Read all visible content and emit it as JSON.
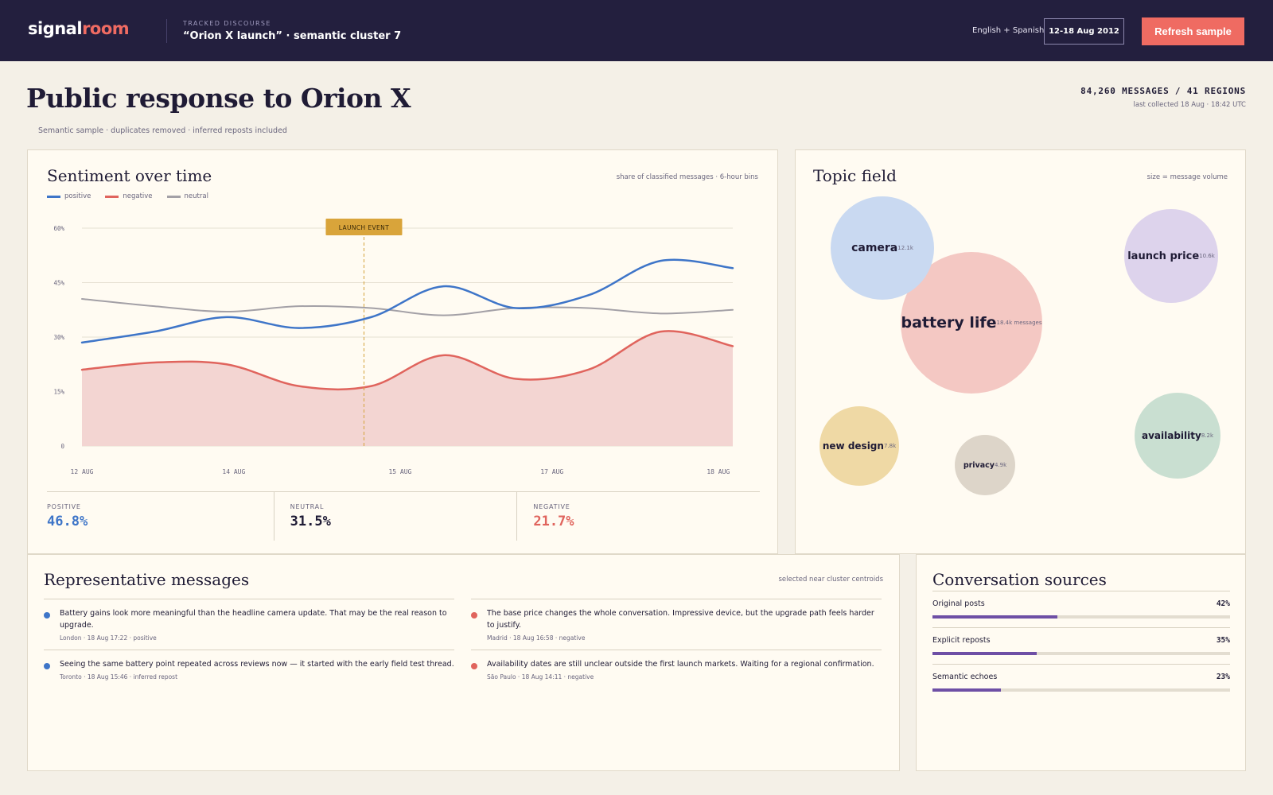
{
  "header": {
    "logo_part1": "signal",
    "logo_part2": "room",
    "tracked_label": "TRACKED DISCOURSE",
    "tracked_title": "“Orion X launch” · semantic cluster 7",
    "language": "English + Spanish",
    "date_range": "12-18 Aug 2012",
    "refresh_label": "Refresh sample"
  },
  "page": {
    "title": "Public response to Orion X",
    "subtitle": "Semantic sample · duplicates removed · inferred reposts included",
    "counts": "84,260 MESSAGES / 41 REGIONS",
    "collected": "last collected 18 Aug · 18:42 UTC"
  },
  "sentiment": {
    "title": "Sentiment over time",
    "note": "share of classified messages · 6-hour bins",
    "legend": [
      {
        "label": "positive",
        "color": "#3e75c8"
      },
      {
        "label": "negative",
        "color": "#e0645d"
      },
      {
        "label": "neutral",
        "color": "#a3a0a6"
      }
    ],
    "stats": [
      {
        "label": "POSITIVE",
        "value": "46.8%",
        "color": "#3e75c8"
      },
      {
        "label": "NEUTRAL",
        "value": "31.5%",
        "color": "#1f1b35"
      },
      {
        "label": "NEGATIVE",
        "value": "21.7%",
        "color": "#e0645d"
      }
    ]
  },
  "chart_data": {
    "type": "line",
    "title": "Sentiment over time",
    "subtitle": "share of classified messages · 6-hour bins",
    "x": [
      0,
      1,
      2,
      3,
      4,
      5,
      6,
      7,
      8,
      9
    ],
    "x_tick_labels": [
      {
        "at": 0,
        "label": "12 AUG"
      },
      {
        "at": 2.1,
        "label": "14 AUG"
      },
      {
        "at": 4.4,
        "label": "15 AUG"
      },
      {
        "at": 6.5,
        "label": "17 AUG"
      },
      {
        "at": 8.8,
        "label": "18 AUG"
      }
    ],
    "y_ticks": [
      0,
      15,
      30,
      45,
      60
    ],
    "y_tick_labels": [
      "0",
      "15%",
      "30%",
      "45%",
      "60%"
    ],
    "ylim": [
      0,
      60
    ],
    "grid": true,
    "legend_position": "top-left",
    "annotation": {
      "label": "LAUNCH EVENT",
      "x": 3.9
    },
    "series": [
      {
        "name": "positive",
        "color": "#3e75c8",
        "values": [
          28.5,
          31.5,
          35.5,
          32.5,
          35.5,
          44,
          38,
          41.5,
          51,
          49
        ]
      },
      {
        "name": "negative",
        "color": "#e0645d",
        "fill": "#f3d5d2",
        "values": [
          21,
          23,
          22.5,
          16.5,
          16.5,
          25,
          18.5,
          21,
          31.5,
          27.5
        ]
      },
      {
        "name": "neutral",
        "color": "#a3a0a6",
        "values": [
          40.5,
          38.5,
          37,
          38.5,
          38,
          36,
          38,
          38,
          36.5,
          37.5
        ]
      }
    ]
  },
  "topics": {
    "title": "Topic field",
    "note": "size = message volume",
    "bubbles": [
      {
        "label": "camera",
        "count": "12.1k",
        "color": "#c9d9f1",
        "volume": 12.1
      },
      {
        "label": "battery life",
        "count": "18.4k messages",
        "color": "#f4c8c3",
        "volume": 18.4
      },
      {
        "label": "launch price",
        "count": "10.6k",
        "color": "#ddd3ec",
        "volume": 10.6
      },
      {
        "label": "new design",
        "count": "7.8k",
        "color": "#efd9a5",
        "volume": 7.8
      },
      {
        "label": "privacy",
        "count": "4.9k",
        "color": "#ddd5c9",
        "volume": 4.9
      },
      {
        "label": "availability",
        "count": "8.2k",
        "color": "#c9dfd1",
        "volume": 8.2
      }
    ]
  },
  "messages": {
    "title": "Representative messages",
    "note": "selected near cluster centroids",
    "left": [
      {
        "text": "Battery gains look more meaningful than the headline camera update. That may be the real reason to upgrade.",
        "meta": "London · 18 Aug 17:22 · positive",
        "color": "#3e75c8"
      },
      {
        "text": "Seeing the same battery point repeated across reviews now — it started with the early field test thread.",
        "meta": "Toronto · 18 Aug 15:46 · inferred repost",
        "color": "#3e75c8"
      }
    ],
    "right": [
      {
        "text": "The base price changes the whole conversation. Impressive device, but the upgrade path feels harder to justify.",
        "meta": "Madrid · 18 Aug 16:58 · negative",
        "color": "#e0645d"
      },
      {
        "text": "Availability dates are still unclear outside the first launch markets. Waiting for a regional confirmation.",
        "meta": "São Paulo · 18 Aug 14:11 · negative",
        "color": "#e0645d"
      }
    ]
  },
  "sources": {
    "title": "Conversation sources",
    "items": [
      {
        "name": "Original posts",
        "pct": "42%",
        "share": 42
      },
      {
        "name": "Explicit reposts",
        "pct": "35%",
        "share": 35
      },
      {
        "name": "Semantic echoes",
        "pct": "23%",
        "share": 23
      }
    ]
  }
}
